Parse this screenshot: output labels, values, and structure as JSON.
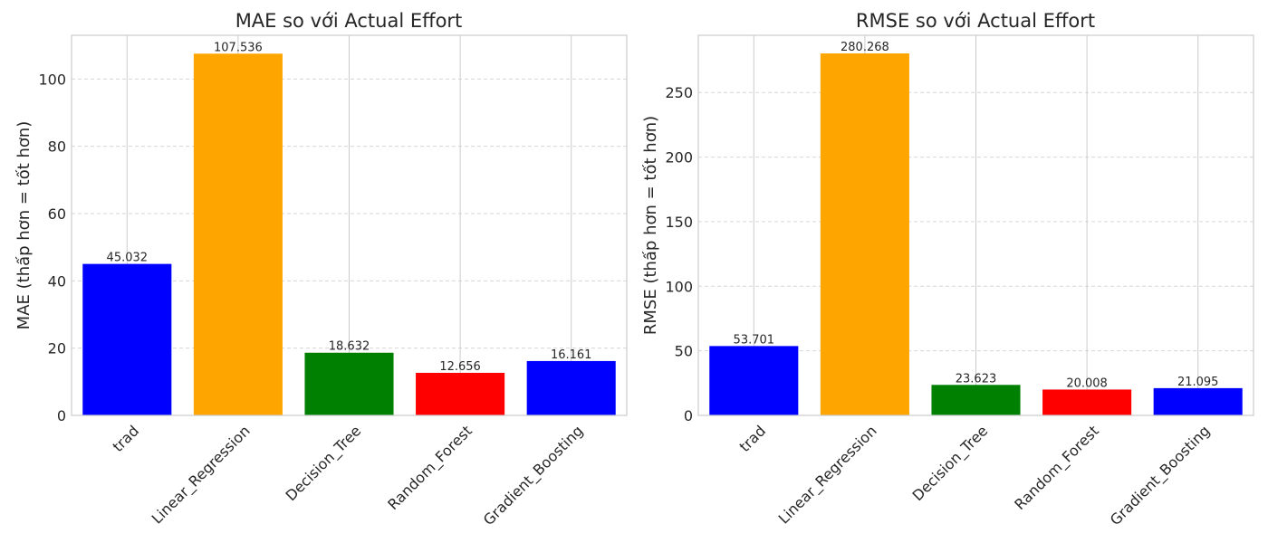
{
  "chart_data": [
    {
      "type": "bar",
      "title": "MAE so với Actual Effort",
      "xlabel": "",
      "ylabel": "MAE (thấp hơn = tốt hơn)",
      "categories": [
        "trad",
        "Linear_Regression",
        "Decision_Tree",
        "Random_Forest",
        "Gradient_Boosting"
      ],
      "values": [
        45.032,
        107.536,
        18.632,
        12.656,
        16.161
      ],
      "value_labels": [
        "45.032",
        "107.536",
        "18.632",
        "12.656",
        "16.161"
      ],
      "colors": [
        "#0000ff",
        "#ffa500",
        "#008000",
        "#ff0000",
        "#0000ff"
      ],
      "ylim": [
        0,
        113
      ],
      "yticks": [
        0,
        20,
        40,
        60,
        80,
        100
      ],
      "ytick_labels": [
        "0",
        "20",
        "40",
        "60",
        "80",
        "100"
      ],
      "grid": true
    },
    {
      "type": "bar",
      "title": "RMSE so với Actual Effort",
      "xlabel": "",
      "ylabel": "RMSE (thấp hơn = tốt hơn)",
      "categories": [
        "trad",
        "Linear_Regression",
        "Decision_Tree",
        "Random_Forest",
        "Gradient_Boosting"
      ],
      "values": [
        53.701,
        280.268,
        23.623,
        20.008,
        21.095
      ],
      "value_labels": [
        "53.701",
        "280.268",
        "23.623",
        "20.008",
        "21.095"
      ],
      "colors": [
        "#0000ff",
        "#ffa500",
        "#008000",
        "#ff0000",
        "#0000ff"
      ],
      "ylim": [
        0,
        294.3
      ],
      "yticks": [
        0,
        50,
        100,
        150,
        200,
        250
      ],
      "ytick_labels": [
        "0",
        "50",
        "100",
        "150",
        "200",
        "250"
      ],
      "grid": true
    }
  ]
}
